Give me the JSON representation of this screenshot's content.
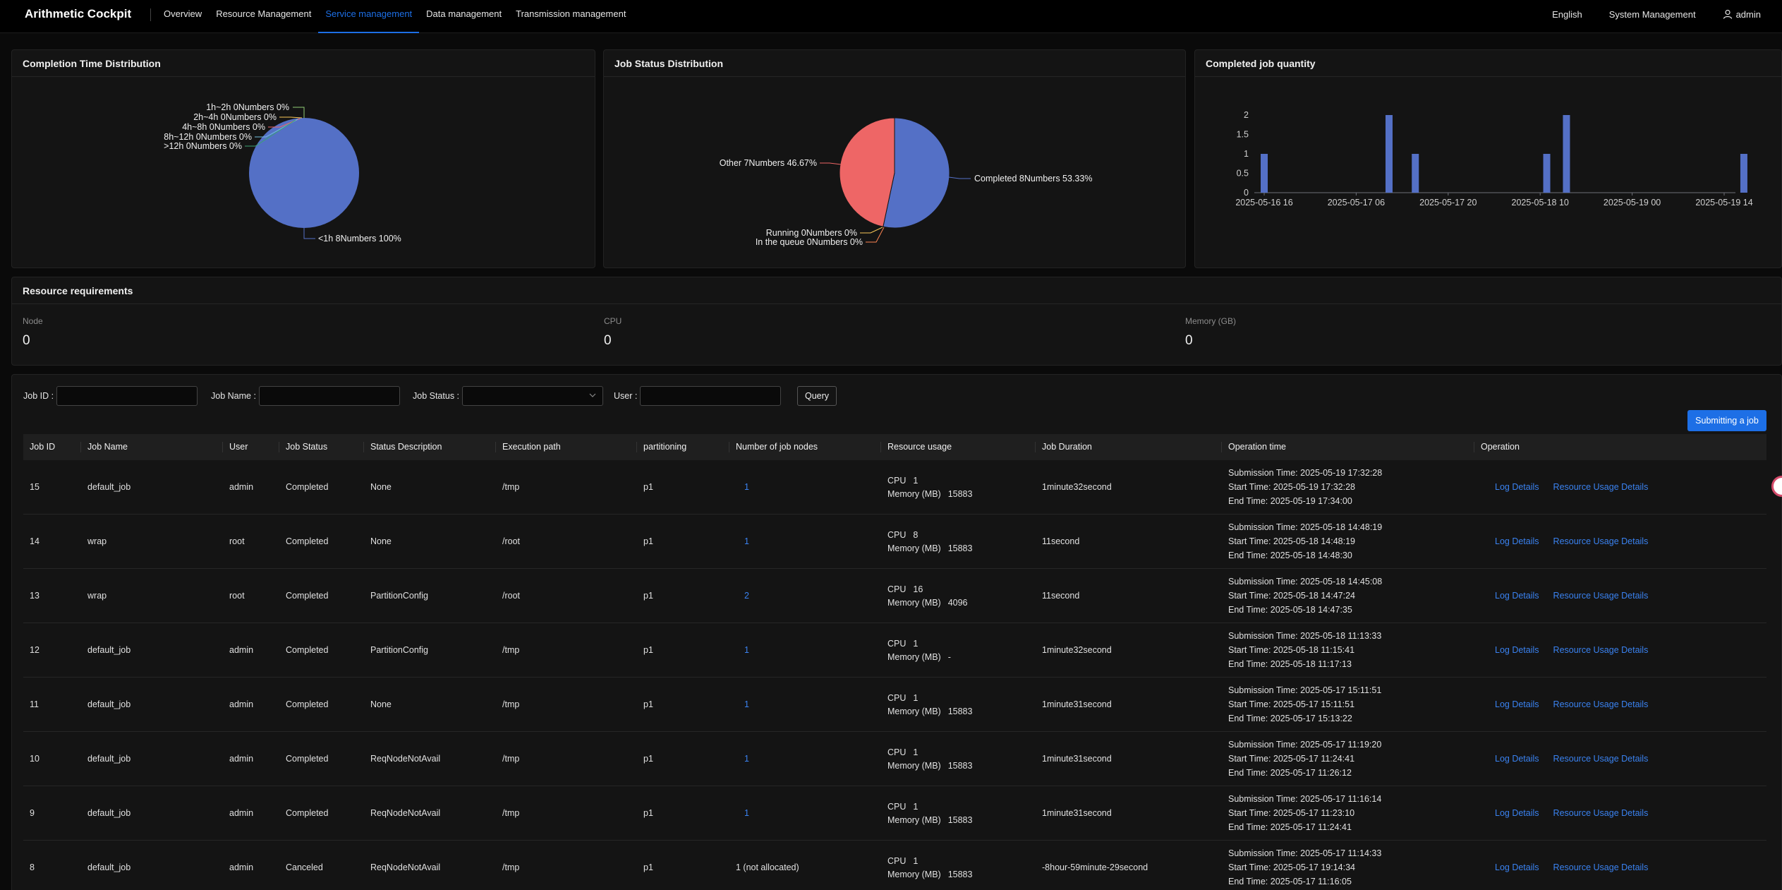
{
  "app": {
    "title": "Arithmetic Cockpit",
    "nav": [
      "Overview",
      "Resource Management",
      "Service management",
      "Data management",
      "Transmission management"
    ],
    "active_nav": 2,
    "language": "English",
    "system": "System Management",
    "user": "admin"
  },
  "colors": {
    "accent": "#1d6fe6",
    "pie_blue": "#5470c6",
    "pie_red": "#ee6666",
    "pie_green": "#91cc75",
    "pie_yellow": "#fac858",
    "pie_teal": "#73c0de",
    "pie_orange": "#fc8452"
  },
  "completion_card": {
    "title": "Completion Time Distribution",
    "chart_data": {
      "type": "pie",
      "slices": [
        {
          "label": "<1h 8Numbers 100%",
          "value": 8
        },
        {
          "label": "1h~2h 0Numbers 0%",
          "value": 0
        },
        {
          "label": "2h~4h 0Numbers 0%",
          "value": 0
        },
        {
          "label": "4h~8h 0Numbers 0%",
          "value": 0
        },
        {
          "label": "8h~12h 0Numbers 0%",
          "value": 0
        },
        {
          "label": ">12h 0Numbers 0%",
          "value": 0
        }
      ]
    }
  },
  "status_card": {
    "title": "Job Status Distribution",
    "chart_data": {
      "type": "pie",
      "slices": [
        {
          "label": "Completed 8Numbers 53.33%",
          "value": 8
        },
        {
          "label": "In the queue 0Numbers 0%",
          "value": 0
        },
        {
          "label": "Running 0Numbers 0%",
          "value": 0
        },
        {
          "label": "Other 7Numbers 46.67%",
          "value": 7
        }
      ]
    }
  },
  "quantity_card": {
    "title": "Completed job quantity",
    "chart_data": {
      "type": "bar",
      "x_ticks": [
        "2025-05-16 16",
        "2025-05-17 06",
        "2025-05-17 20",
        "2025-05-18 10",
        "2025-05-19 00",
        "2025-05-19 14"
      ],
      "y_ticks": [
        "0",
        "0.5",
        "1",
        "1.5",
        "2"
      ],
      "ylim": [
        0,
        2
      ],
      "bars": [
        {
          "x": "2025-05-16 16",
          "value": 1
        },
        {
          "x": "2025-05-17 11",
          "value": 2
        },
        {
          "x": "2025-05-17 15",
          "value": 1
        },
        {
          "x": "2025-05-18 11",
          "value": 1
        },
        {
          "x": "2025-05-18 14",
          "value": 2
        },
        {
          "x": "2025-05-19 17",
          "value": 1
        }
      ]
    }
  },
  "resources": {
    "title": "Resource requirements",
    "items": [
      {
        "label": "Node",
        "value": "0"
      },
      {
        "label": "CPU",
        "value": "0"
      },
      {
        "label": "Memory (GB)",
        "value": "0"
      }
    ]
  },
  "filters": {
    "job_id": "Job ID :",
    "job_name": "Job Name :",
    "job_status": "Job Status :",
    "user": "User :",
    "query": "Query",
    "submit": "Submitting a job"
  },
  "table": {
    "headers": [
      "Job ID",
      "Job Name",
      "User",
      "Job Status",
      "Status Description",
      "Execution path",
      "partitioning",
      "Number of job nodes",
      "Resource usage",
      "Job Duration",
      "Operation time",
      "Operation"
    ],
    "labels": {
      "cpu": "CPU",
      "mem": "Memory (MB)",
      "sub": "Submission Time: ",
      "start": "Start Time: ",
      "end": "End Time: ",
      "log": "Log Details",
      "usage": "Resource Usage Details"
    },
    "rows": [
      {
        "id": "15",
        "name": "default_job",
        "user": "admin",
        "status": "Completed",
        "desc": "None",
        "path": "/tmp",
        "part": "p1",
        "nodes": "1",
        "nodes_link": true,
        "cpu": "1",
        "mem": "15883",
        "duration": "1minute32second",
        "sub": "2025-05-19 17:32:28",
        "start": "2025-05-19 17:32:28",
        "end": "2025-05-19 17:34:00"
      },
      {
        "id": "14",
        "name": "wrap",
        "user": "root",
        "status": "Completed",
        "desc": "None",
        "path": "/root",
        "part": "p1",
        "nodes": "1",
        "nodes_link": true,
        "cpu": "8",
        "mem": "15883",
        "duration": "11second",
        "sub": "2025-05-18 14:48:19",
        "start": "2025-05-18 14:48:19",
        "end": "2025-05-18 14:48:30"
      },
      {
        "id": "13",
        "name": "wrap",
        "user": "root",
        "status": "Completed",
        "desc": "PartitionConfig",
        "path": "/root",
        "part": "p1",
        "nodes": "2",
        "nodes_link": true,
        "cpu": "16",
        "mem": "4096",
        "duration": "11second",
        "sub": "2025-05-18 14:45:08",
        "start": "2025-05-18 14:47:24",
        "end": "2025-05-18 14:47:35"
      },
      {
        "id": "12",
        "name": "default_job",
        "user": "admin",
        "status": "Completed",
        "desc": "PartitionConfig",
        "path": "/tmp",
        "part": "p1",
        "nodes": "1",
        "nodes_link": true,
        "cpu": "1",
        "mem": "-",
        "duration": "1minute32second",
        "sub": "2025-05-18 11:13:33",
        "start": "2025-05-18 11:15:41",
        "end": "2025-05-18 11:17:13"
      },
      {
        "id": "11",
        "name": "default_job",
        "user": "admin",
        "status": "Completed",
        "desc": "None",
        "path": "/tmp",
        "part": "p1",
        "nodes": "1",
        "nodes_link": true,
        "cpu": "1",
        "mem": "15883",
        "duration": "1minute31second",
        "sub": "2025-05-17 15:11:51",
        "start": "2025-05-17 15:11:51",
        "end": "2025-05-17 15:13:22"
      },
      {
        "id": "10",
        "name": "default_job",
        "user": "admin",
        "status": "Completed",
        "desc": "ReqNodeNotAvail",
        "path": "/tmp",
        "part": "p1",
        "nodes": "1",
        "nodes_link": true,
        "cpu": "1",
        "mem": "15883",
        "duration": "1minute31second",
        "sub": "2025-05-17 11:19:20",
        "start": "2025-05-17 11:24:41",
        "end": "2025-05-17 11:26:12"
      },
      {
        "id": "9",
        "name": "default_job",
        "user": "admin",
        "status": "Completed",
        "desc": "ReqNodeNotAvail",
        "path": "/tmp",
        "part": "p1",
        "nodes": "1",
        "nodes_link": true,
        "cpu": "1",
        "mem": "15883",
        "duration": "1minute31second",
        "sub": "2025-05-17 11:16:14",
        "start": "2025-05-17 11:23:10",
        "end": "2025-05-17 11:24:41"
      },
      {
        "id": "8",
        "name": "default_job",
        "user": "admin",
        "status": "Canceled",
        "desc": "ReqNodeNotAvail",
        "path": "/tmp",
        "part": "p1",
        "nodes": "1 (not allocated)",
        "nodes_link": false,
        "cpu": "1",
        "mem": "15883",
        "duration": "-8hour-59minute-29second",
        "sub": "2025-05-17 11:14:33",
        "start": "2025-05-17 19:14:34",
        "end": "2025-05-17 11:16:05"
      }
    ]
  }
}
